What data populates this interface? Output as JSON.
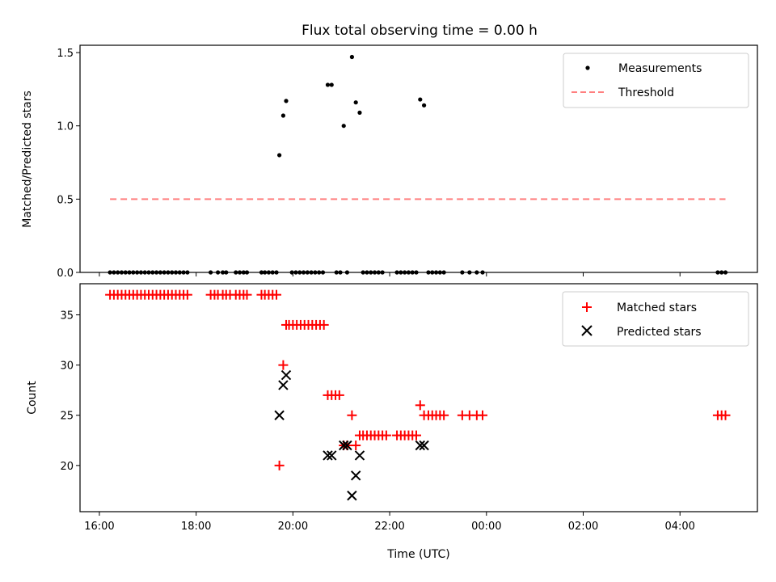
{
  "chart_data": {
    "title": "Flux total observing time = 0.00 h",
    "xlabel": "Time (UTC)",
    "x_ticks": [
      "16:00",
      "18:00",
      "20:00",
      "22:00",
      "00:00",
      "02:00",
      "04:00"
    ],
    "x_tick_hours": [
      16,
      18,
      20,
      22,
      24,
      26,
      28
    ],
    "xlim_hours": [
      15.6,
      29.6
    ],
    "panels": [
      {
        "type": "scatter",
        "ylabel": "Matched/Predicted stars",
        "ylim": [
          0,
          1.55
        ],
        "y_ticks": [
          0,
          0.5,
          1.0,
          1.5
        ],
        "y_tick_labels": [
          "0.0",
          "0.5",
          "1.0",
          "1.5"
        ],
        "series": [
          {
            "name": "Measurements",
            "marker": "dot",
            "color": "#000000",
            "points": [
              [
                16.22,
                0
              ],
              [
                16.3,
                0
              ],
              [
                16.38,
                0
              ],
              [
                16.46,
                0
              ],
              [
                16.54,
                0
              ],
              [
                16.62,
                0
              ],
              [
                16.7,
                0
              ],
              [
                16.78,
                0
              ],
              [
                16.86,
                0
              ],
              [
                16.94,
                0
              ],
              [
                17.02,
                0
              ],
              [
                17.1,
                0
              ],
              [
                17.18,
                0
              ],
              [
                17.26,
                0
              ],
              [
                17.34,
                0
              ],
              [
                17.42,
                0
              ],
              [
                17.5,
                0
              ],
              [
                17.58,
                0
              ],
              [
                17.66,
                0
              ],
              [
                17.74,
                0
              ],
              [
                17.82,
                0
              ],
              [
                18.3,
                0
              ],
              [
                18.45,
                0
              ],
              [
                18.55,
                0
              ],
              [
                18.62,
                0
              ],
              [
                18.82,
                0
              ],
              [
                18.9,
                0
              ],
              [
                18.98,
                0
              ],
              [
                19.05,
                0
              ],
              [
                19.35,
                0
              ],
              [
                19.42,
                0
              ],
              [
                19.5,
                0
              ],
              [
                19.58,
                0
              ],
              [
                19.66,
                0
              ],
              [
                19.72,
                0.8
              ],
              [
                19.8,
                1.07
              ],
              [
                19.86,
                1.17
              ],
              [
                19.98,
                0
              ],
              [
                20.06,
                0
              ],
              [
                20.14,
                0
              ],
              [
                20.22,
                0
              ],
              [
                20.3,
                0
              ],
              [
                20.38,
                0
              ],
              [
                20.46,
                0
              ],
              [
                20.54,
                0
              ],
              [
                20.62,
                0
              ],
              [
                20.72,
                1.28
              ],
              [
                20.8,
                1.28
              ],
              [
                20.9,
                0
              ],
              [
                20.98,
                0
              ],
              [
                21.12,
                0
              ],
              [
                21.05,
                1.0
              ],
              [
                21.22,
                1.47
              ],
              [
                21.3,
                1.16
              ],
              [
                21.38,
                1.09
              ],
              [
                21.45,
                0
              ],
              [
                21.53,
                0
              ],
              [
                21.61,
                0
              ],
              [
                21.69,
                0
              ],
              [
                21.77,
                0
              ],
              [
                21.85,
                0
              ],
              [
                22.15,
                0
              ],
              [
                22.23,
                0
              ],
              [
                22.31,
                0
              ],
              [
                22.39,
                0
              ],
              [
                22.47,
                0
              ],
              [
                22.55,
                0
              ],
              [
                22.63,
                1.18
              ],
              [
                22.71,
                1.14
              ],
              [
                22.8,
                0
              ],
              [
                22.88,
                0
              ],
              [
                22.96,
                0
              ],
              [
                23.04,
                0
              ],
              [
                23.12,
                0
              ],
              [
                23.5,
                0
              ],
              [
                23.65,
                0
              ],
              [
                23.8,
                0
              ],
              [
                23.92,
                0
              ],
              [
                28.78,
                0
              ],
              [
                28.86,
                0
              ],
              [
                28.94,
                0
              ]
            ]
          },
          {
            "name": "Threshold",
            "type": "line",
            "style": "dashed",
            "color": "#ff7f7f",
            "x": [
              16.22,
              28.94
            ],
            "y": [
              0.5,
              0.5
            ]
          }
        ],
        "legend": "top-right"
      },
      {
        "type": "scatter",
        "ylabel": "Count",
        "ylim": [
          15.4,
          38.1
        ],
        "y_ticks": [
          20,
          25,
          30,
          35
        ],
        "y_tick_labels": [
          "20",
          "25",
          "30",
          "35"
        ],
        "series": [
          {
            "name": "Matched stars",
            "marker": "plus",
            "color": "#ff0000",
            "points": [
              [
                16.22,
                37
              ],
              [
                16.3,
                37
              ],
              [
                16.38,
                37
              ],
              [
                16.46,
                37
              ],
              [
                16.54,
                37
              ],
              [
                16.62,
                37
              ],
              [
                16.7,
                37
              ],
              [
                16.78,
                37
              ],
              [
                16.86,
                37
              ],
              [
                16.94,
                37
              ],
              [
                17.02,
                37
              ],
              [
                17.1,
                37
              ],
              [
                17.18,
                37
              ],
              [
                17.26,
                37
              ],
              [
                17.34,
                37
              ],
              [
                17.42,
                37
              ],
              [
                17.5,
                37
              ],
              [
                17.58,
                37
              ],
              [
                17.66,
                37
              ],
              [
                17.74,
                37
              ],
              [
                17.82,
                37
              ],
              [
                18.3,
                37
              ],
              [
                18.38,
                37
              ],
              [
                18.45,
                37
              ],
              [
                18.55,
                37
              ],
              [
                18.62,
                37
              ],
              [
                18.7,
                37
              ],
              [
                18.82,
                37
              ],
              [
                18.9,
                37
              ],
              [
                18.98,
                37
              ],
              [
                19.05,
                37
              ],
              [
                19.35,
                37
              ],
              [
                19.42,
                37
              ],
              [
                19.5,
                37
              ],
              [
                19.58,
                37
              ],
              [
                19.66,
                37
              ],
              [
                19.72,
                20
              ],
              [
                19.8,
                30
              ],
              [
                19.86,
                34
              ],
              [
                19.92,
                34
              ],
              [
                20.0,
                34
              ],
              [
                20.08,
                34
              ],
              [
                20.16,
                34
              ],
              [
                20.24,
                34
              ],
              [
                20.32,
                34
              ],
              [
                20.4,
                34
              ],
              [
                20.48,
                34
              ],
              [
                20.56,
                34
              ],
              [
                20.64,
                34
              ],
              [
                20.72,
                27
              ],
              [
                20.8,
                27
              ],
              [
                20.88,
                27
              ],
              [
                20.96,
                27
              ],
              [
                21.05,
                22
              ],
              [
                21.12,
                22
              ],
              [
                21.3,
                22
              ],
              [
                21.22,
                25
              ],
              [
                21.38,
                23
              ],
              [
                21.45,
                23
              ],
              [
                21.53,
                23
              ],
              [
                21.61,
                23
              ],
              [
                21.69,
                23
              ],
              [
                21.77,
                23
              ],
              [
                21.85,
                23
              ],
              [
                21.93,
                23
              ],
              [
                22.15,
                23
              ],
              [
                22.23,
                23
              ],
              [
                22.31,
                23
              ],
              [
                22.39,
                23
              ],
              [
                22.47,
                23
              ],
              [
                22.55,
                23
              ],
              [
                22.63,
                26
              ],
              [
                22.71,
                25
              ],
              [
                22.8,
                25
              ],
              [
                22.88,
                25
              ],
              [
                22.96,
                25
              ],
              [
                23.04,
                25
              ],
              [
                23.12,
                25
              ],
              [
                23.5,
                25
              ],
              [
                23.65,
                25
              ],
              [
                23.8,
                25
              ],
              [
                23.92,
                25
              ],
              [
                28.78,
                25
              ],
              [
                28.86,
                25
              ],
              [
                28.94,
                25
              ]
            ]
          },
          {
            "name": "Predicted stars",
            "marker": "x",
            "color": "#000000",
            "points": [
              [
                19.72,
                25
              ],
              [
                19.8,
                28
              ],
              [
                19.86,
                29
              ],
              [
                20.72,
                21
              ],
              [
                20.8,
                21
              ],
              [
                21.05,
                22
              ],
              [
                21.12,
                22
              ],
              [
                21.22,
                17
              ],
              [
                21.3,
                19
              ],
              [
                21.38,
                21
              ],
              [
                22.63,
                22
              ],
              [
                22.71,
                22
              ]
            ]
          }
        ],
        "legend": "top-right"
      }
    ]
  }
}
